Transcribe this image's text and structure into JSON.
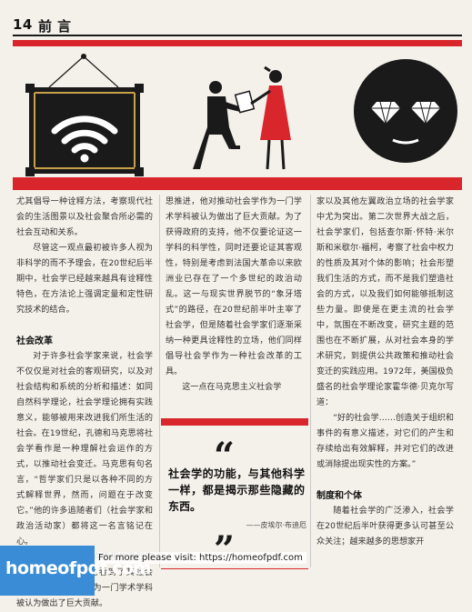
{
  "header": {
    "page_number": "14",
    "section_title": "前言"
  },
  "colors": {
    "accent_red": "#d8262c",
    "ink": "#1a1a1a",
    "paper": "#f4f1ea"
  },
  "illustrations": [
    {
      "name": "wifi-frame-illustration",
      "icon": "wifi-icon"
    },
    {
      "name": "proposal-illustration",
      "icon": "kneeling-man-icon"
    },
    {
      "name": "diamond-eyes-face-illustration",
      "icon": "diamond-icon"
    }
  ],
  "column1": {
    "paragraphs": [
      "尤其倡导一种诠释方法，考察现代社会的生活图景以及社会聚合所必需的社会互动和关系。",
      "尽管这一观点最初被许多人视为非科学的而不予理会，在20世纪后半期中，社会学已经越来越具有诠释性特色，在方法论上强调定量和定性研究技术的结合。"
    ],
    "heading": "社会改革",
    "paragraphs2": [
      "对于许多社会学家来说，社会学不仅仅是对社会的客观研究，以及对社会结构和系统的分析和描述：如同自然科学理论，社会学理论拥有实践意义，能够被用来改进我们所生活的社会。在19世纪，孔德和马克思将社会学看作是一种理解社会运作的方式，以推动社会变迁。马克思有句名言，“哲学家们只是以各种不同的方式解释世界，然而，问题在于改变它。”他的许多追随者们（社会学家和政治活动家）都将这一名言铭记在心。",
      "涂尔干则没有马克思那样强烈的政治倾向，但是他也看到了其社会学，他推动社会学作为一门学术学科被认为做出了巨大贡献。"
    ]
  },
  "column2": {
    "paragraphs": [
      "思推进，他对推动社会学作为一门学术学科被认为做出了巨大贡献。为了获得政府的支持，他不仅要论证这一学科的科学性，同时还要论证其客观性，特别是考虑到法国大革命以来欧洲业已存在了一个多世纪的政治动乱。这一与现实世界脱节的“象牙塔式”的路径，在20世纪前半叶主宰了社会学，但是随着社会学家们逐渐采纳一种更具诠释性的立场，他们同样倡导社会学作为一种社会改革的工具。",
      "这一点在马克思主义社会学"
    ]
  },
  "column3": {
    "paragraphs": [
      "家以及其他左翼政治立场的社会学家中尤为突出。第二次世界大战之后，社会学家们，包括查尔斯·怀特·米尔斯和米歇尔·福柯，考察了社会中权力的性质及其对个体的影响；社会形塑我们生活的方式，而不是我们塑造社会的方式，以及我们如何能够抵制这些力量。即使是在更主流的社会学中，氛围在不断改变，研究主题的范围也在不断扩展，从对社会本身的学术研究，到提供公共政策和推动社会变迁的实践应用。1972年，美国极负盛名的社会学理论家霍华德·贝克尔写道：",
      "“好的社会学……创造关于组织和事件的有意义描述，对它们的产生和存续给出有效解释，并对它们的改进或消除提出现实性的方案。”"
    ],
    "heading": "制度和个体",
    "paragraphs2": [
      "随着社会学的广泛渗入，社会学在20世纪后半叶获得更多认可甚至公众关注；越来越多的思想家开"
    ]
  },
  "pull_quote": {
    "open_mark": "“",
    "close_mark": "”",
    "text": "社会学的功能，与其他科学一样，都是揭示那些隐藏的东西。",
    "author": "——皮埃尔·布迪厄"
  },
  "watermark": {
    "logo": "homeofpdf.com",
    "text": "For more please visit: https://homeofpdf.com"
  }
}
